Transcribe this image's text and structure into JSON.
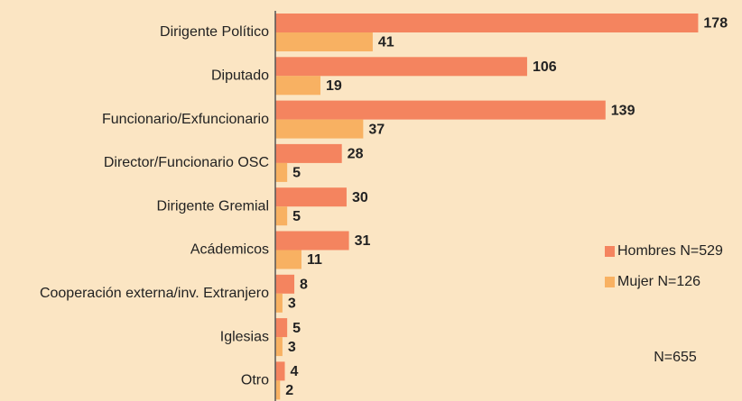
{
  "chart_data": {
    "type": "hbar",
    "categories": [
      "Dirigente Político",
      "Diputado",
      "Funcionario/Exfuncionario",
      "Director/Funcionario OSC",
      "Dirigente Gremial",
      "Acádemicos",
      "Cooperación externa/inv. Extranjero",
      "Iglesias",
      "Otro"
    ],
    "series": [
      {
        "name": "Hombres N=529",
        "color": "#f4845f",
        "values": [
          178,
          106,
          139,
          28,
          30,
          31,
          8,
          5,
          4
        ]
      },
      {
        "name": "Mujer N=126",
        "color": "#f8b162",
        "values": [
          41,
          19,
          37,
          5,
          5,
          11,
          3,
          3,
          2
        ]
      }
    ],
    "xlim": [
      0,
      190
    ],
    "annotation": "N=655",
    "legend": "right"
  }
}
